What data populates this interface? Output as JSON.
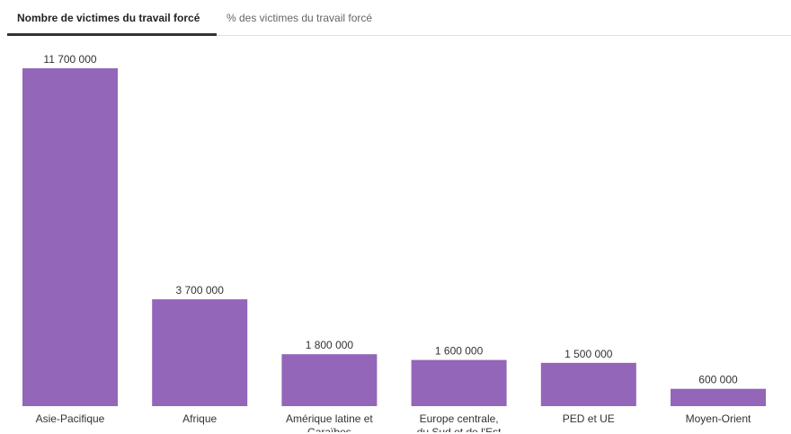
{
  "tabs": [
    {
      "label": "Nombre de victimes du travail forcé",
      "active": true
    },
    {
      "label": "% des victimes du travail forcé",
      "active": false
    }
  ],
  "colors": {
    "bar": "#9366b9",
    "text": "#333333",
    "tab_active_underline": "#333333"
  },
  "chart_data": {
    "type": "bar",
    "categories": [
      [
        "Asie-Pacifique"
      ],
      [
        "Afrique"
      ],
      [
        "Amérique latine et",
        "Caraïbes"
      ],
      [
        "Europe centrale,",
        "du Sud et de l'Est"
      ],
      [
        "PED et UE"
      ],
      [
        "Moyen-Orient"
      ]
    ],
    "values": [
      11700000,
      3700000,
      1800000,
      1600000,
      1500000,
      600000
    ],
    "value_labels": [
      "11 700 000",
      "3 700 000",
      "1 800 000",
      "1 600 000",
      "1 500 000",
      "600 000"
    ],
    "title": "",
    "xlabel": "",
    "ylabel": "",
    "ylim": [
      0,
      11700000
    ],
    "grid": false,
    "legend": "none"
  }
}
